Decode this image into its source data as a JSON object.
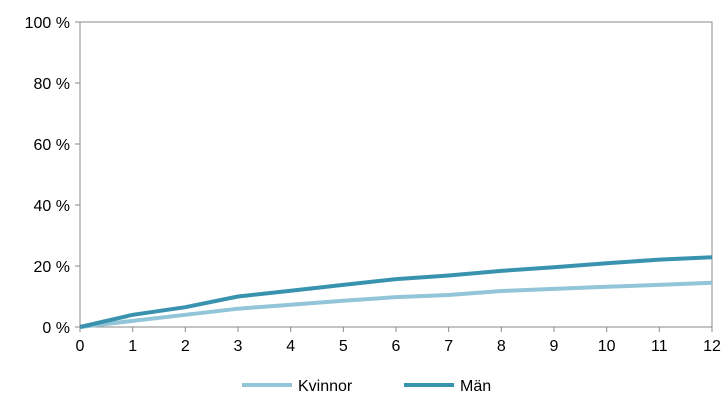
{
  "chart_data": {
    "type": "line",
    "x": [
      0,
      1,
      2,
      3,
      4,
      5,
      6,
      7,
      8,
      9,
      10,
      11,
      12
    ],
    "xticks": [
      "0",
      "1",
      "2",
      "3",
      "4",
      "5",
      "6",
      "7",
      "8",
      "9",
      "10",
      "11",
      "12"
    ],
    "yticks": [
      "0 %",
      "20 %",
      "40 %",
      "60 %",
      "80 %",
      "100 %"
    ],
    "ylim": [
      0,
      100
    ],
    "xlim": [
      0,
      12
    ],
    "grid": false,
    "legend_position": "bottom",
    "series": [
      {
        "name": "Kvinnor",
        "color": "#92C5D8",
        "values": [
          0,
          2,
          4,
          6,
          7.3,
          8.6,
          9.8,
          10.5,
          11.8,
          12.5,
          13.2,
          13.8,
          14.5
        ]
      },
      {
        "name": "Män",
        "color": "#3A93AE",
        "values": [
          0,
          4,
          6.5,
          10,
          11.9,
          13.8,
          15.7,
          16.9,
          18.4,
          19.6,
          20.9,
          22.1,
          22.9
        ]
      }
    ]
  }
}
